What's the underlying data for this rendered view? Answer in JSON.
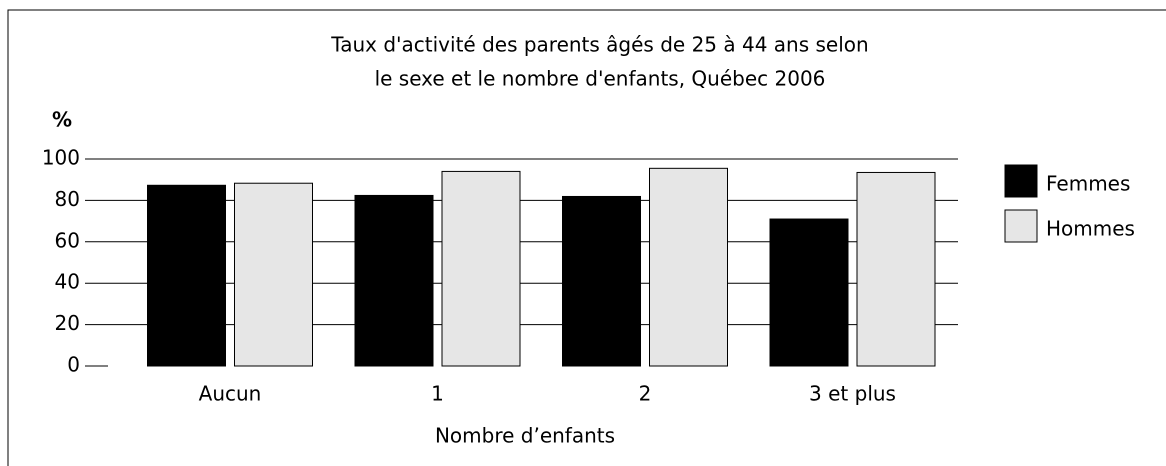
{
  "chart_data": {
    "type": "bar",
    "title": [
      "Taux d'activité des parents âgés de 25 à 44 ans selon",
      "le sexe et le nombre d'enfants, Québec 2006"
    ],
    "y_label": "%",
    "x_label": "Nombre d’enfants",
    "categories": [
      "Aucun",
      "1",
      "2",
      "3 et plus"
    ],
    "series": [
      {
        "name": "Femmes",
        "color": "#000000",
        "values": [
          87.3,
          82.4,
          81.9,
          71.0
        ]
      },
      {
        "name": "Hommes",
        "color": "#e6e6e6",
        "values": [
          88.3,
          94.0,
          95.5,
          93.5
        ]
      }
    ],
    "ylim": [
      0,
      100
    ],
    "yticks": [
      0,
      20,
      40,
      60,
      80,
      100
    ],
    "grid": true,
    "legend": "right"
  }
}
